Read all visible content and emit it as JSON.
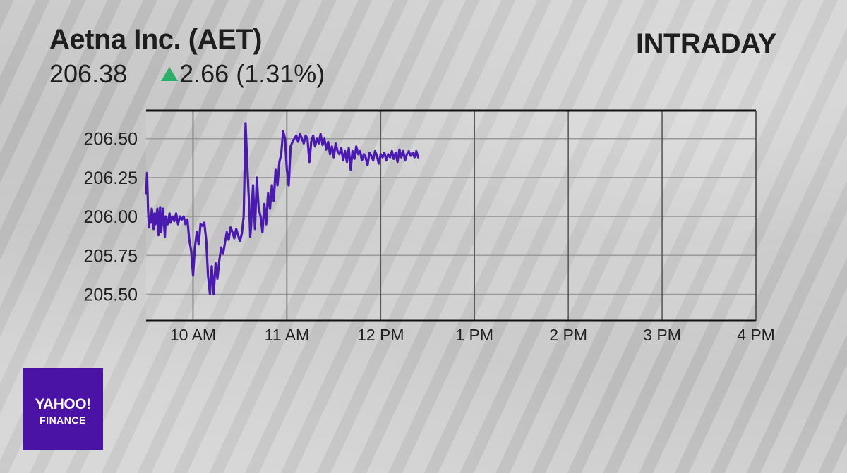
{
  "header": {
    "title": "Aetna Inc. (AET)",
    "price": "206.38",
    "change": "2.66 (1.31%)",
    "period": "INTRADAY",
    "up_color": "#2fb06a"
  },
  "logo": {
    "brand": "YAHOO!",
    "sub": "FINANCE",
    "color": "#4b12a6"
  },
  "chart_data": {
    "type": "line",
    "xlabel": "",
    "ylabel": "",
    "ylim": [
      205.33,
      206.68
    ],
    "xlim": [
      9.5,
      16.0
    ],
    "x_ticks": [
      {
        "value": 10,
        "label": "10 AM"
      },
      {
        "value": 11,
        "label": "11 AM"
      },
      {
        "value": 12,
        "label": "12 PM"
      },
      {
        "value": 13,
        "label": "1 PM"
      },
      {
        "value": 14,
        "label": "2 PM"
      },
      {
        "value": 15,
        "label": "3 PM"
      },
      {
        "value": 16,
        "label": "4 PM"
      }
    ],
    "y_ticks": [
      {
        "value": 206.5,
        "label": "206.50"
      },
      {
        "value": 206.25,
        "label": "206.25"
      },
      {
        "value": 206.0,
        "label": "206.00"
      },
      {
        "value": 205.75,
        "label": "205.75"
      },
      {
        "value": 205.5,
        "label": "205.50"
      }
    ],
    "grid": true,
    "line_color": "#4a1ab0",
    "series": [
      {
        "name": "",
        "x": [
          9.5,
          9.51,
          9.52,
          9.53,
          9.54,
          9.55,
          9.56,
          9.58,
          9.59,
          9.6,
          9.62,
          9.63,
          9.65,
          9.66,
          9.68,
          9.7,
          9.71,
          9.73,
          9.75,
          9.76,
          9.78,
          9.8,
          9.82,
          9.84,
          9.86,
          9.88,
          9.9,
          9.92,
          9.94,
          9.96,
          9.98,
          10.0,
          10.02,
          10.04,
          10.06,
          10.08,
          10.1,
          10.12,
          10.14,
          10.16,
          10.18,
          10.2,
          10.22,
          10.24,
          10.26,
          10.28,
          10.3,
          10.32,
          10.34,
          10.36,
          10.38,
          10.4,
          10.42,
          10.44,
          10.46,
          10.48,
          10.5,
          10.52,
          10.54,
          10.56,
          10.58,
          10.6,
          10.61,
          10.62,
          10.63,
          10.64,
          10.65,
          10.66,
          10.68,
          10.7,
          10.72,
          10.74,
          10.76,
          10.78,
          10.8,
          10.82,
          10.84,
          10.86,
          10.88,
          10.9,
          10.92,
          10.94,
          10.96,
          10.98,
          11.0,
          11.02,
          11.04,
          11.06,
          11.08,
          11.1,
          11.12,
          11.14,
          11.16,
          11.18,
          11.2,
          11.22,
          11.24,
          11.26,
          11.28,
          11.3,
          11.32,
          11.34,
          11.36,
          11.38,
          11.4,
          11.42,
          11.44,
          11.46,
          11.48,
          11.5,
          11.52,
          11.54,
          11.56,
          11.58,
          11.6,
          11.62,
          11.64,
          11.66,
          11.68,
          11.7,
          11.72,
          11.74,
          11.76,
          11.78,
          11.8,
          11.82,
          11.84,
          11.86,
          11.88,
          11.9,
          11.92,
          11.94,
          11.96,
          11.98,
          12.0,
          12.02,
          12.04,
          12.06,
          12.08,
          12.1,
          12.12,
          12.14,
          12.16,
          12.18,
          12.2,
          12.22,
          12.24,
          12.26,
          12.28,
          12.3,
          12.32,
          12.34,
          12.36,
          12.38,
          12.4
        ],
        "values": [
          206.15,
          206.28,
          206.05,
          205.93,
          206.0,
          205.96,
          206.05,
          205.92,
          206.02,
          205.95,
          206.05,
          205.88,
          206.06,
          205.9,
          206.05,
          205.87,
          206.0,
          205.95,
          206.02,
          205.96,
          206.0,
          205.97,
          206.02,
          205.95,
          206.0,
          205.98,
          206.0,
          205.95,
          205.98,
          205.85,
          205.78,
          205.62,
          205.8,
          205.9,
          205.82,
          205.95,
          205.94,
          205.96,
          205.85,
          205.62,
          205.5,
          205.68,
          205.5,
          205.7,
          205.6,
          205.72,
          205.8,
          205.76,
          205.83,
          205.9,
          205.85,
          205.93,
          205.9,
          205.86,
          205.92,
          205.88,
          205.84,
          205.89,
          206.0,
          206.6,
          206.3,
          206.05,
          205.87,
          205.95,
          206.1,
          206.2,
          206.05,
          205.92,
          206.25,
          206.05,
          206.0,
          205.9,
          206.08,
          205.95,
          206.15,
          206.05,
          206.2,
          206.1,
          206.3,
          206.2,
          206.35,
          206.4,
          206.55,
          206.5,
          206.3,
          206.2,
          206.45,
          206.48,
          206.5,
          206.52,
          206.48,
          206.53,
          206.5,
          206.47,
          206.52,
          206.5,
          206.35,
          206.48,
          206.52,
          206.45,
          206.5,
          206.47,
          206.53,
          206.46,
          206.5,
          206.43,
          206.48,
          206.4,
          206.45,
          206.38,
          206.47,
          206.42,
          206.4,
          206.44,
          206.36,
          206.42,
          206.35,
          206.44,
          206.3,
          206.42,
          206.37,
          206.45,
          206.4,
          206.42,
          206.36,
          206.4,
          206.38,
          206.33,
          206.41,
          206.39,
          206.36,
          206.42,
          206.39,
          206.34,
          206.4,
          206.38,
          206.41,
          206.36,
          206.4,
          206.38,
          206.42,
          206.37,
          206.41,
          206.35,
          206.43,
          206.38,
          206.42,
          206.36,
          206.4,
          206.42,
          206.39,
          206.41,
          206.38,
          206.42,
          206.38
        ]
      }
    ]
  }
}
